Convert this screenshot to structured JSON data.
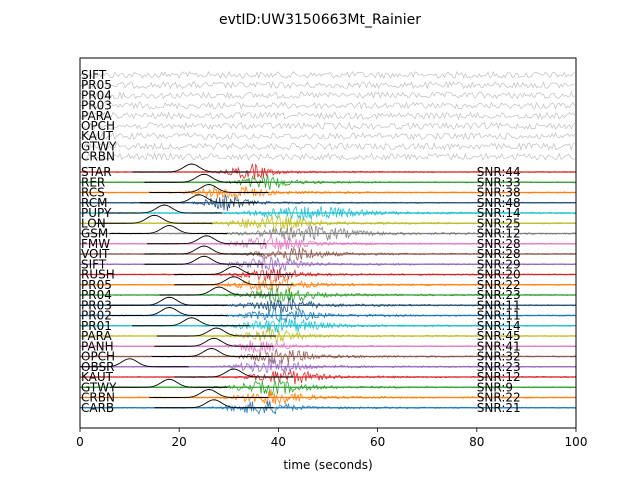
{
  "chart_data": {
    "type": "line",
    "title": "evtID:UW3150663Mt_Rainier",
    "xlabel": "time (seconds)",
    "ylabel": "",
    "xlim": [
      0,
      100
    ],
    "xticks": [
      0,
      20,
      40,
      60,
      80,
      100
    ],
    "grid": false,
    "noise_traces": [
      {
        "station": "SIFT"
      },
      {
        "station": "PR05"
      },
      {
        "station": "PR04"
      },
      {
        "station": "PR03"
      },
      {
        "station": "PARA"
      },
      {
        "station": "OPCH"
      },
      {
        "station": "KAUT"
      },
      {
        "station": "GTWY"
      },
      {
        "station": "CRBN"
      }
    ],
    "traces": [
      {
        "station": "STAR",
        "snr": "SNR:44",
        "color": "#d62728",
        "pick_time": 22.5,
        "wave_center": 34,
        "wave_width": 5
      },
      {
        "station": "RER",
        "snr": "SNR:33",
        "color": "#2ca02c",
        "pick_time": 25,
        "wave_center": 37,
        "wave_width": 6
      },
      {
        "station": "RCS",
        "snr": "SNR:38",
        "color": "#ff7f0e",
        "pick_time": 26,
        "wave_center": 30,
        "wave_width": 8
      },
      {
        "station": "RCM",
        "snr": "SNR:48",
        "color": "#1f4e79",
        "pick_time": 24,
        "wave_center": 29,
        "wave_width": 5
      },
      {
        "station": "PUPY",
        "snr": "SNR:14",
        "color": "#17becf",
        "pick_time": 17,
        "wave_center": 45,
        "wave_width": 12
      },
      {
        "station": "LON",
        "snr": "SNR:25",
        "color": "#bcbd22",
        "pick_time": 15,
        "wave_center": 38,
        "wave_width": 10
      },
      {
        "station": "GSM",
        "snr": "SNR:12",
        "color": "#7f7f7f",
        "pick_time": 18,
        "wave_center": 45,
        "wave_width": 12
      },
      {
        "station": "FMW",
        "snr": "SNR:28",
        "color": "#e377c2",
        "pick_time": 25.5,
        "wave_center": 38,
        "wave_width": 8
      },
      {
        "station": "VOIT",
        "snr": "SNR:28",
        "color": "#8c564b",
        "pick_time": 25,
        "wave_center": 42,
        "wave_width": 8
      },
      {
        "station": "SIFT",
        "snr": "SNR:29",
        "color": "#9467bd",
        "pick_time": 25,
        "wave_center": 38,
        "wave_width": 8
      },
      {
        "station": "RUSH",
        "snr": "SNR:20",
        "color": "#d62728",
        "pick_time": 31,
        "wave_center": 38,
        "wave_width": 7
      },
      {
        "station": "PR05",
        "snr": "SNR:22",
        "color": "#ff7f0e",
        "pick_time": 31,
        "wave_center": 38,
        "wave_width": 8
      },
      {
        "station": "PR04",
        "snr": "SNR:23",
        "color": "#2ca02c",
        "pick_time": 28,
        "wave_center": 40,
        "wave_width": 8
      },
      {
        "station": "PR03",
        "snr": "SNR:11",
        "color": "#1f4e79",
        "pick_time": 18,
        "wave_center": 40,
        "wave_width": 8
      },
      {
        "station": "PR02",
        "snr": "SNR:11",
        "color": "#1f77b4",
        "pick_time": 18,
        "wave_center": 40,
        "wave_width": 8
      },
      {
        "station": "PR01",
        "snr": "SNR:14",
        "color": "#17becf",
        "pick_time": 22.5,
        "wave_center": 40,
        "wave_width": 10
      },
      {
        "station": "PARA",
        "snr": "SNR:45",
        "color": "#bcbd22",
        "pick_time": 27.5,
        "wave_center": 38,
        "wave_width": 7
      },
      {
        "station": "PANH",
        "snr": "SNR:41",
        "color": "#e377c2",
        "pick_time": 27,
        "wave_center": 36,
        "wave_width": 6
      },
      {
        "station": "OPCH",
        "snr": "SNR:32",
        "color": "#8c564b",
        "pick_time": 26.5,
        "wave_center": 40,
        "wave_width": 8
      },
      {
        "station": "OBSR",
        "snr": "SNR:23",
        "color": "#9467bd",
        "pick_time": 10,
        "wave_center": 38,
        "wave_width": 8
      },
      {
        "station": "KAUT",
        "snr": "SNR:12",
        "color": "#d62728",
        "pick_time": 31,
        "wave_center": 41,
        "wave_width": 8
      },
      {
        "station": "GTWY",
        "snr": "SNR:9",
        "color": "#2ca02c",
        "pick_time": 18,
        "wave_center": 38,
        "wave_width": 8
      },
      {
        "station": "CRBN",
        "snr": "SNR:22",
        "color": "#ff7f0e",
        "pick_time": 26,
        "wave_center": 38,
        "wave_width": 8
      },
      {
        "station": "CARB",
        "snr": "SNR:21",
        "color": "#1f77b4",
        "pick_time": 27,
        "wave_center": 36,
        "wave_width": 7
      }
    ]
  }
}
